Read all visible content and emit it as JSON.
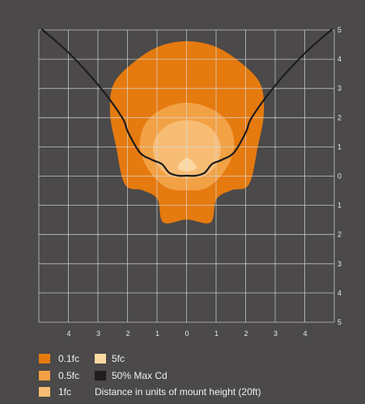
{
  "chart_data": {
    "type": "isofootcandle-contour",
    "title": "",
    "x_ticks": [
      "4",
      "3",
      "2",
      "1",
      "0",
      "1",
      "2",
      "3",
      "4"
    ],
    "y_ticks_right": [
      "5",
      "4",
      "3",
      "2",
      "1",
      "0",
      "1",
      "2",
      "3",
      "4",
      "5"
    ],
    "xlim": [
      -5,
      5
    ],
    "ylim": [
      -5,
      5
    ],
    "grid": true,
    "contours": [
      {
        "name": "0.1fc",
        "color": "#e57a0f",
        "outline": [
          [
            0,
            4.6
          ],
          [
            1,
            4.4
          ],
          [
            1.9,
            3.8
          ],
          [
            2.5,
            3.1
          ],
          [
            2.6,
            2.1
          ],
          [
            2.4,
            1.0
          ],
          [
            2.1,
            -0.3
          ],
          [
            1.5,
            -0.5
          ],
          [
            1.0,
            -0.8
          ],
          [
            0.8,
            -1.6
          ],
          [
            0,
            -1.5
          ],
          [
            -0.8,
            -1.6
          ],
          [
            -1.0,
            -0.8
          ],
          [
            -1.5,
            -0.5
          ],
          [
            -2.1,
            -0.3
          ],
          [
            -2.4,
            1.0
          ],
          [
            -2.6,
            2.1
          ],
          [
            -2.5,
            3.1
          ],
          [
            -1.9,
            3.8
          ],
          [
            -1.0,
            4.4
          ]
        ]
      },
      {
        "name": "0.5fc",
        "color": "#f2a145",
        "outline": [
          [
            0,
            2.5
          ],
          [
            0.8,
            2.3
          ],
          [
            1.4,
            1.8
          ],
          [
            1.6,
            1.0
          ],
          [
            1.3,
            0.2
          ],
          [
            0.7,
            -0.4
          ],
          [
            0,
            -0.5
          ],
          [
            -0.7,
            -0.4
          ],
          [
            -1.3,
            0.2
          ],
          [
            -1.6,
            1.0
          ],
          [
            -1.4,
            1.8
          ],
          [
            -0.8,
            2.3
          ]
        ]
      },
      {
        "name": "1fc",
        "color": "#f8bd75",
        "outline": [
          [
            0,
            1.9
          ],
          [
            0.7,
            1.7
          ],
          [
            1.1,
            1.2
          ],
          [
            1.1,
            0.6
          ],
          [
            0.7,
            0.05
          ],
          [
            0,
            -0.1
          ],
          [
            -0.7,
            0.05
          ],
          [
            -1.1,
            0.6
          ],
          [
            -1.1,
            1.2
          ],
          [
            -0.7,
            1.7
          ]
        ]
      },
      {
        "name": "5fc",
        "color": "#fcd9a3",
        "outline": [
          [
            0,
            0.6
          ],
          [
            0.3,
            0.35
          ],
          [
            0.25,
            0.2
          ],
          [
            0,
            0.15
          ],
          [
            -0.25,
            0.2
          ],
          [
            -0.3,
            0.35
          ]
        ]
      }
    ],
    "series": [
      {
        "name": "50% Max Cd",
        "color": "#1e1c1c",
        "x": [
          -4.9,
          -4.0,
          -3.0,
          -2.2,
          -2.0,
          -1.6,
          -1.2,
          -0.85,
          -0.6,
          -0.3,
          0,
          0.3,
          0.6,
          0.85,
          1.2,
          1.6,
          2.0,
          2.2,
          3.0,
          4.0,
          4.9
        ],
        "y": [
          5.0,
          4.2,
          3.1,
          2.0,
          1.5,
          0.8,
          0.55,
          0.4,
          0.1,
          0.0,
          0.0,
          0.0,
          0.1,
          0.4,
          0.55,
          0.8,
          1.5,
          2.0,
          3.1,
          4.2,
          5.0
        ]
      }
    ]
  },
  "legend": {
    "items": [
      {
        "label": "0.1fc",
        "color": "#e57a0f"
      },
      {
        "label": "0.5fc",
        "color": "#f2a145"
      },
      {
        "label": "1fc",
        "color": "#f8bd75"
      },
      {
        "label": "5fc",
        "color": "#fcd9a3"
      },
      {
        "label": "50% Max Cd",
        "color": "#1e1c1c"
      }
    ],
    "note": "Distance in units of mount height (20ft)"
  }
}
